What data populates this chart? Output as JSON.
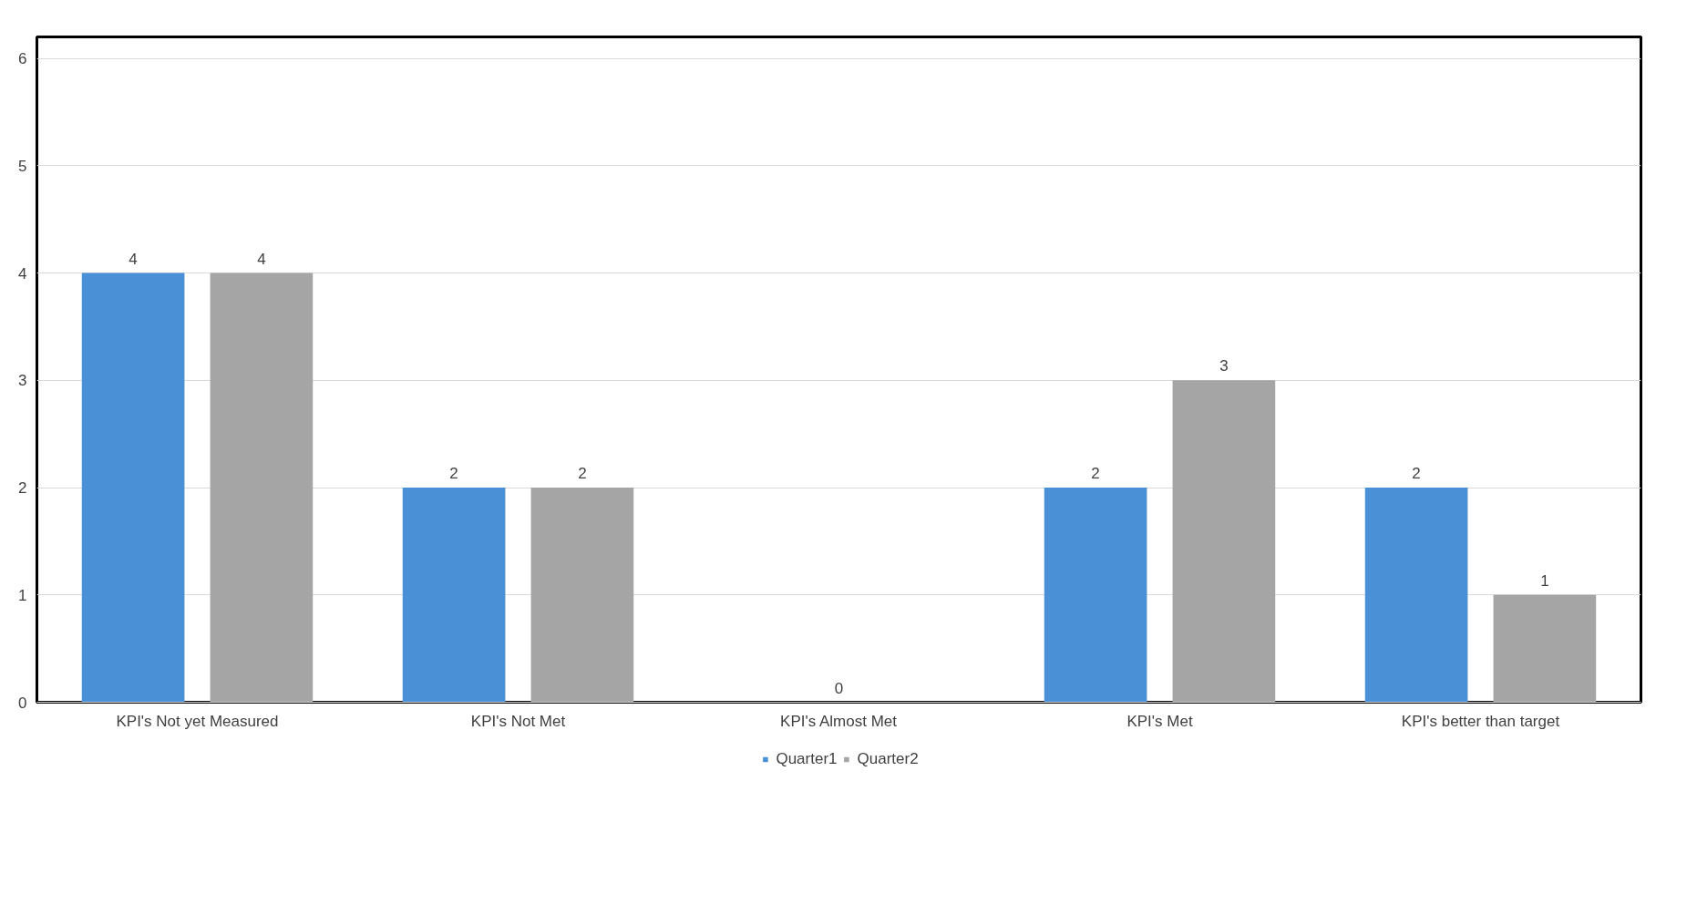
{
  "chart_data": {
    "type": "bar",
    "categories": [
      "KPI's Not yet Measured",
      "KPI's Not Met",
      "KPI's Almost Met",
      "KPI's Met",
      "KPI's better than target"
    ],
    "series": [
      {
        "name": "Quarter1",
        "color": "#4a90d6",
        "values": [
          4,
          2,
          0,
          2,
          2
        ]
      },
      {
        "name": "Quarter2",
        "color": "#a5a5a5",
        "values": [
          4,
          2,
          null,
          3,
          1
        ]
      }
    ],
    "ylim": [
      0,
      6.2
    ],
    "yticks": [
      0,
      1,
      2,
      3,
      4,
      5,
      6
    ],
    "grid": "y",
    "legend": "bottom",
    "data_labels": true
  }
}
